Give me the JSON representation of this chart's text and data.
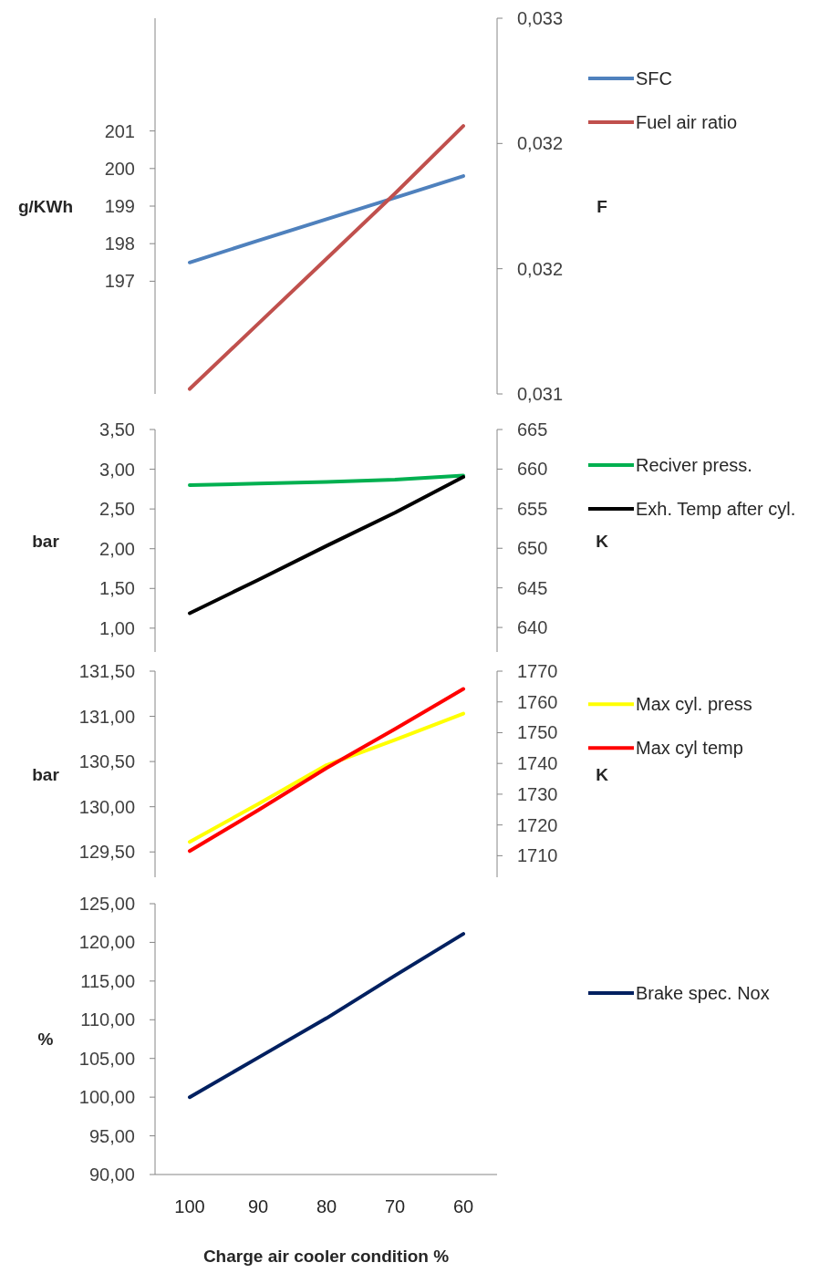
{
  "chart_data": [
    {
      "type": "line",
      "categories": [
        null,
        null,
        null,
        null,
        null
      ],
      "ylabel": "g/KWh",
      "y2label": "F",
      "ylim": [
        194,
        204
      ],
      "yticks": [
        197,
        198,
        199,
        200,
        201
      ],
      "y2lim": [
        0.031,
        0.0325
      ],
      "y2ticks": [
        {
          "value": 0.031,
          "label": "0,031"
        },
        {
          "value": 0.0315,
          "label": "0,032"
        },
        {
          "value": 0.032,
          "label": "0,032"
        },
        {
          "value": 0.0325,
          "label": "0,033"
        }
      ],
      "legend": "right",
      "grid": false,
      "series": [
        {
          "name": "SFC",
          "color": "#4f81bd",
          "values": [
            197.5,
            198.08,
            198.65,
            199.22,
            199.8
          ]
        },
        {
          "name": "Fuel air ratio",
          "color": "#c0504d",
          "axis": "y2",
          "values": [
            0.03102,
            0.03128,
            0.03154,
            0.0318,
            0.03207
          ]
        }
      ]
    },
    {
      "type": "line",
      "categories": [
        null,
        null,
        null,
        null,
        null
      ],
      "ylabel": "bar",
      "y2label": "K",
      "ylim": [
        0.7,
        3.5
      ],
      "yticks": [
        {
          "value": 1,
          "label": "1,00"
        },
        {
          "value": 1.5,
          "label": "1,50"
        },
        {
          "value": 2,
          "label": "2,00"
        },
        {
          "value": 2.5,
          "label": "2,50"
        },
        {
          "value": 3,
          "label": "3,00"
        },
        {
          "value": 3.5,
          "label": "3,50"
        }
      ],
      "y2lim": [
        636.9,
        665
      ],
      "y2ticks": [
        640,
        645,
        650,
        655,
        660,
        665
      ],
      "legend": "right",
      "grid": false,
      "series": [
        {
          "name": "Reciver press.",
          "color": "#00b050",
          "values": [
            2.8,
            2.82,
            2.84,
            2.87,
            2.92
          ]
        },
        {
          "name": "Exh. Temp after cyl.",
          "color": "#000000",
          "axis": "y2",
          "values": [
            641.8,
            646.0,
            650.3,
            654.5,
            659.0
          ]
        }
      ]
    },
    {
      "type": "line",
      "categories": [
        null,
        null,
        null,
        null,
        null
      ],
      "ylabel": "bar",
      "y2label": "K",
      "ylim": [
        129.22,
        131.5
      ],
      "yticks": [
        {
          "value": 129.5,
          "label": "129,50"
        },
        {
          "value": 130,
          "label": "130,00"
        },
        {
          "value": 130.5,
          "label": "130,50"
        },
        {
          "value": 131,
          "label": "131,00"
        },
        {
          "value": 131.5,
          "label": "131,50"
        }
      ],
      "y2lim": [
        1703,
        1770
      ],
      "y2ticks": [
        1710,
        1720,
        1730,
        1740,
        1750,
        1760,
        1770
      ],
      "legend": "right",
      "grid": false,
      "series": [
        {
          "name": "Max cyl. press",
          "color": "#ffff00",
          "values": [
            129.61,
            130.03,
            130.46,
            130.74,
            131.03
          ]
        },
        {
          "name": "Max cyl temp",
          "color": "#ff0000",
          "axis": "y2",
          "values": [
            1711.5,
            1724.8,
            1738.5,
            1751.2,
            1764.2
          ]
        }
      ]
    },
    {
      "type": "line",
      "categories": [
        "100",
        "90",
        "80",
        "70",
        "60"
      ],
      "xlabel": "Charge air cooler condition %",
      "ylabel": "%",
      "ylim": [
        90,
        125
      ],
      "yticks": [
        {
          "value": 90,
          "label": "90,00"
        },
        {
          "value": 95,
          "label": "95,00"
        },
        {
          "value": 100,
          "label": "100,00"
        },
        {
          "value": 105,
          "label": "105,00"
        },
        {
          "value": 110,
          "label": "110,00"
        },
        {
          "value": 115,
          "label": "115,00"
        },
        {
          "value": 120,
          "label": "120,00"
        },
        {
          "value": 125,
          "label": "125,00"
        }
      ],
      "legend": "right",
      "grid": false,
      "series": [
        {
          "name": "Brake spec. Nox",
          "color": "#002060",
          "values": [
            100.0,
            105.1,
            110.2,
            115.7,
            121.1
          ]
        }
      ]
    }
  ]
}
